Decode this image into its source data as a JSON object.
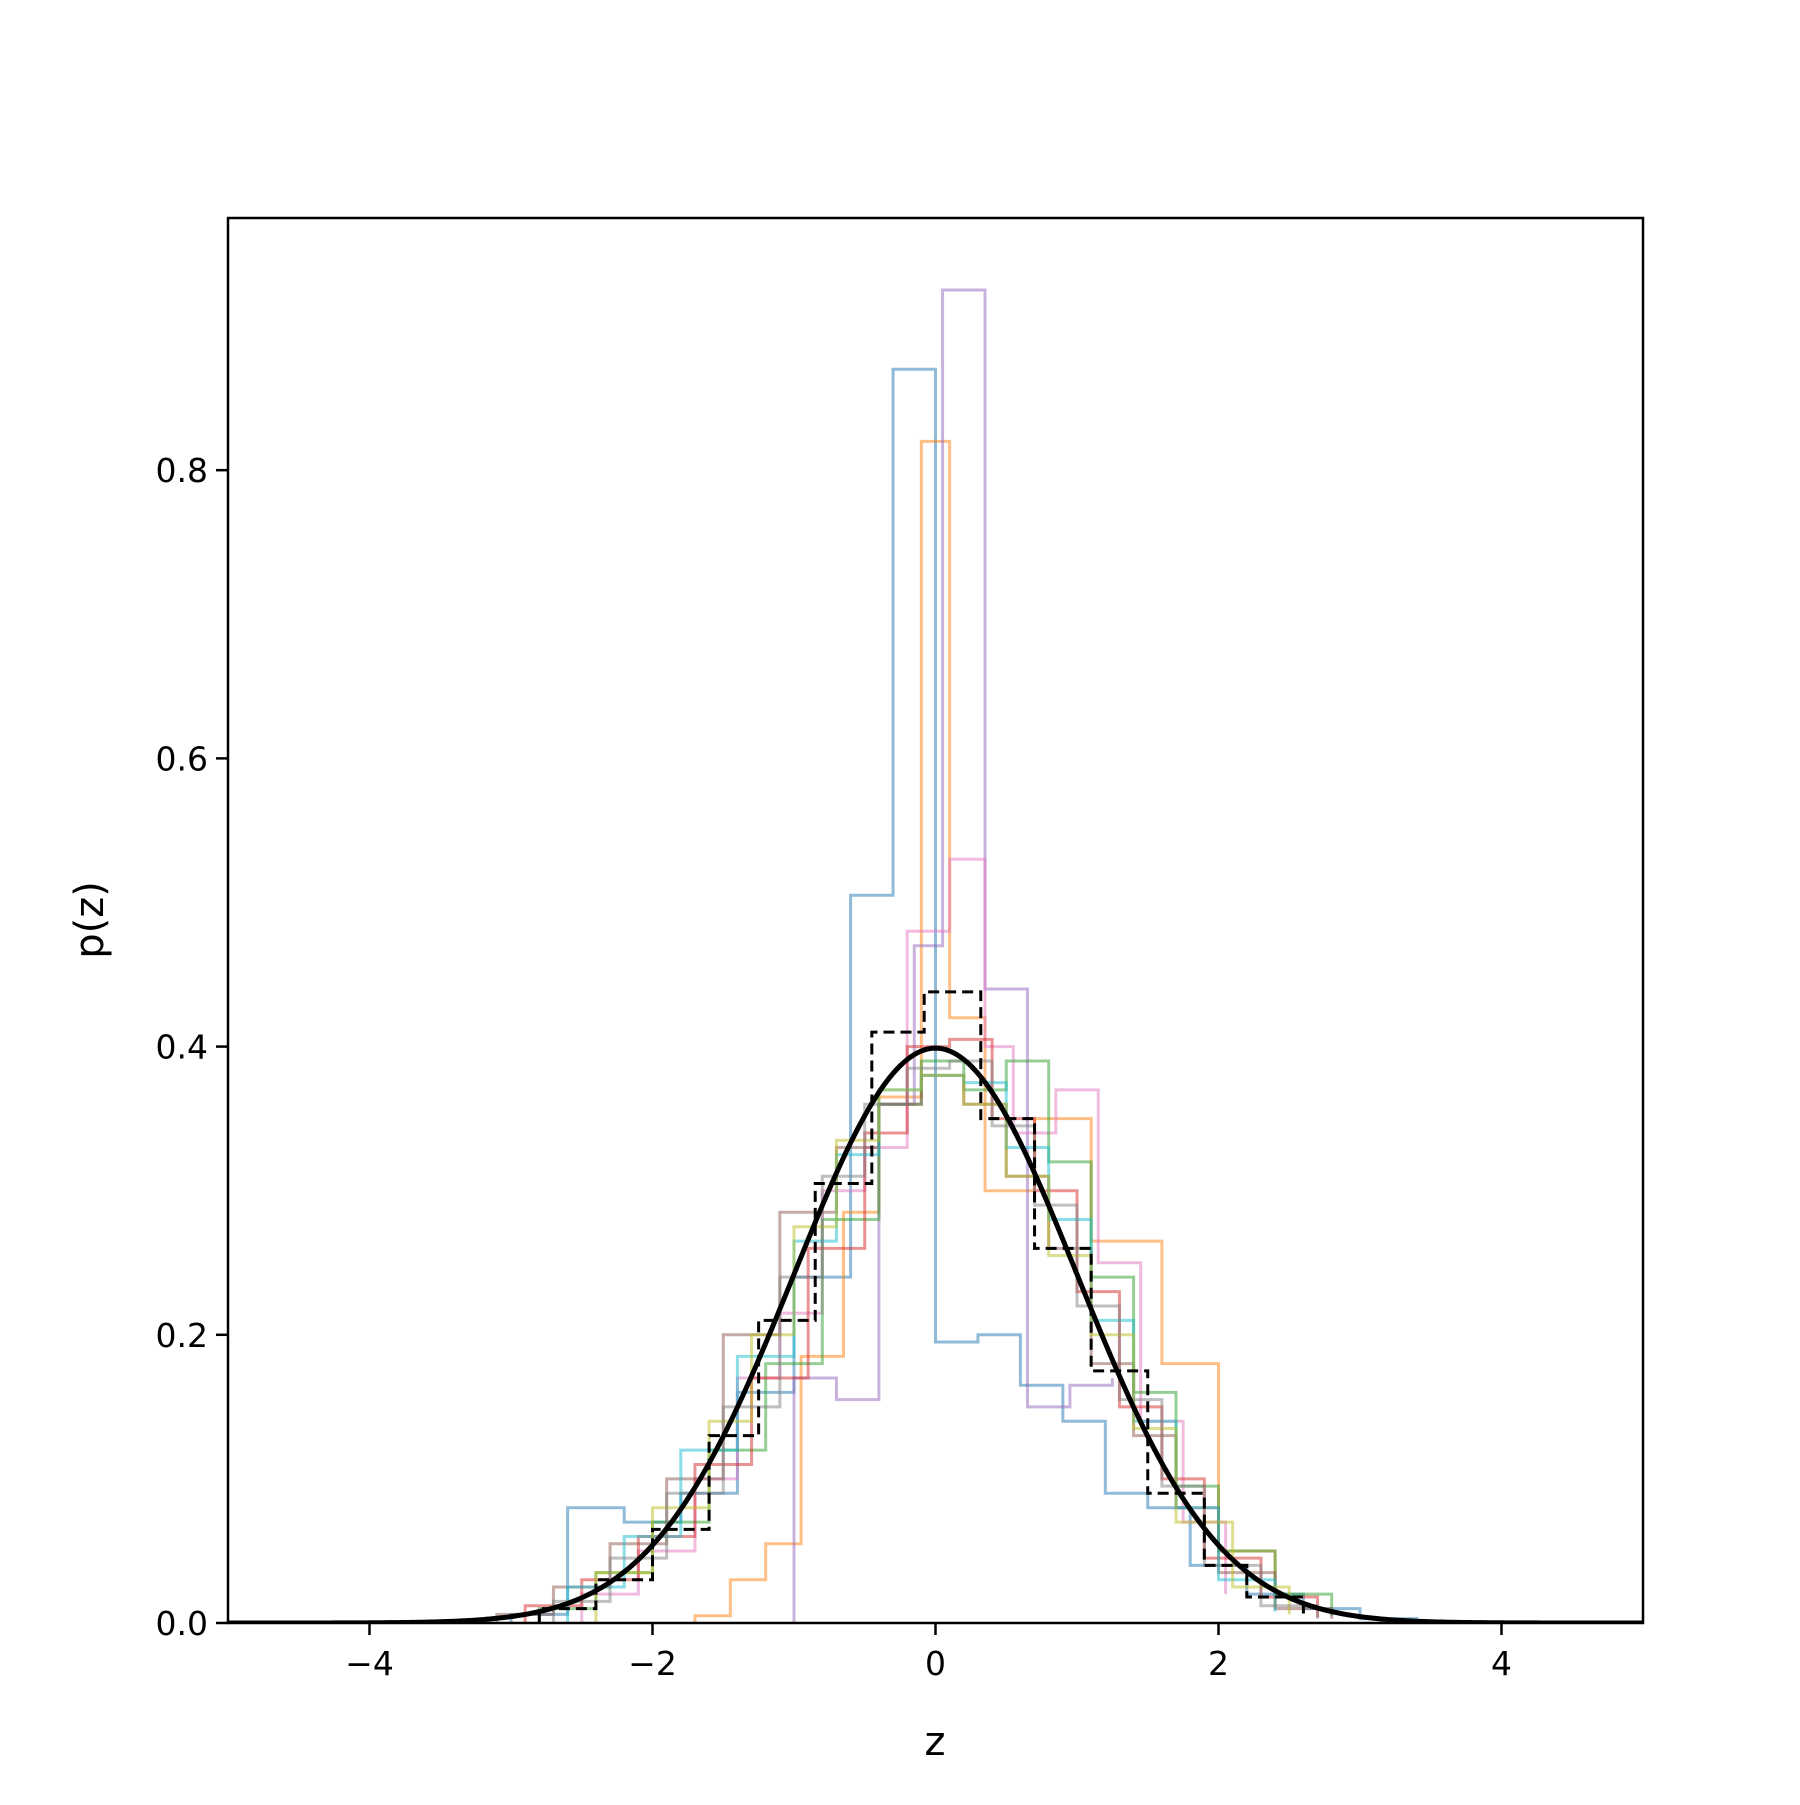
{
  "chart_data": {
    "type": "histogram",
    "title": "",
    "xlabel": "z",
    "ylabel": "p(z)",
    "xlim": [
      -5,
      5
    ],
    "ylim": [
      0,
      0.975
    ],
    "xticks": [
      -4,
      -2,
      0,
      2,
      4
    ],
    "xtick_labels": [
      "−4",
      "−2",
      "0",
      "2",
      "4"
    ],
    "yticks": [
      0,
      0.2,
      0.4,
      0.6,
      0.8
    ],
    "ytick_labels": [
      "0.0",
      "0.2",
      "0.4",
      "0.6",
      "0.8"
    ],
    "grid": false,
    "legend": "none",
    "reference_curve": {
      "style": "solid",
      "color": "#000000",
      "mean": 0,
      "sd": 1
    },
    "series": [
      {
        "color": "#1f77b4",
        "style": "step",
        "alpha": 0.5,
        "edges": [
          -3.0,
          -2.6,
          -2.2,
          -1.8,
          -1.4,
          -1.0,
          -0.6,
          -0.3,
          0.0,
          0.3,
          0.6,
          0.9,
          1.2,
          1.5,
          1.8,
          2.2,
          2.6,
          3.0,
          3.4
        ],
        "values": [
          0.006,
          0.08,
          0.07,
          0.09,
          0.16,
          0.24,
          0.505,
          0.87,
          0.195,
          0.2,
          0.165,
          0.14,
          0.09,
          0.08,
          0.04,
          0.02,
          0.01,
          0.003
        ]
      },
      {
        "color": "#ff7f0e",
        "style": "step",
        "alpha": 0.5,
        "edges": [
          -1.7,
          -1.45,
          -1.2,
          -0.95,
          -0.65,
          -0.4,
          -0.1,
          0.1,
          0.35,
          0.7,
          1.1,
          1.6,
          2.0,
          2.4
        ],
        "values": [
          0.005,
          0.03,
          0.055,
          0.185,
          0.285,
          0.365,
          0.82,
          0.42,
          0.3,
          0.35,
          0.265,
          0.18,
          0.05,
          0.01
        ]
      },
      {
        "color": "#9467bd",
        "style": "step",
        "alpha": 0.5,
        "edges": [
          -1.0,
          -0.7,
          -0.4,
          -0.15,
          0.05,
          0.35,
          0.65,
          0.95,
          1.25
        ],
        "values": [
          0.17,
          0.155,
          0.36,
          0.47,
          0.925,
          0.44,
          0.15,
          0.165,
          0.17
        ]
      },
      {
        "color": "#e377c2",
        "style": "step",
        "alpha": 0.5,
        "edges": [
          -2.5,
          -2.1,
          -1.7,
          -1.4,
          -1.1,
          -0.8,
          -0.5,
          -0.2,
          0.1,
          0.35,
          0.55,
          0.85,
          1.15,
          1.45,
          1.75,
          2.05
        ],
        "values": [
          0.02,
          0.05,
          0.1,
          0.17,
          0.215,
          0.3,
          0.33,
          0.48,
          0.53,
          0.4,
          0.34,
          0.37,
          0.25,
          0.14,
          0.07,
          0.02
        ]
      },
      {
        "color": "#2ca02c",
        "style": "step",
        "alpha": 0.5,
        "edges": [
          -2.8,
          -2.4,
          -2.0,
          -1.6,
          -1.2,
          -0.8,
          -0.4,
          -0.1,
          0.2,
          0.5,
          0.8,
          1.1,
          1.4,
          1.7,
          2.0,
          2.4,
          2.8
        ],
        "values": [
          0.01,
          0.035,
          0.07,
          0.12,
          0.18,
          0.28,
          0.36,
          0.39,
          0.37,
          0.39,
          0.32,
          0.24,
          0.16,
          0.095,
          0.05,
          0.02,
          0.005
        ]
      },
      {
        "color": "#d62728",
        "style": "step",
        "alpha": 0.5,
        "edges": [
          -2.9,
          -2.5,
          -2.1,
          -1.7,
          -1.3,
          -0.9,
          -0.5,
          -0.2,
          0.1,
          0.4,
          0.7,
          1.0,
          1.3,
          1.6,
          1.9,
          2.3,
          2.7
        ],
        "values": [
          0.012,
          0.03,
          0.06,
          0.11,
          0.17,
          0.26,
          0.34,
          0.4,
          0.405,
          0.35,
          0.3,
          0.23,
          0.15,
          0.1,
          0.045,
          0.018,
          0.004
        ]
      },
      {
        "color": "#8c564b",
        "style": "step",
        "alpha": 0.5,
        "edges": [
          -3.1,
          -2.7,
          -2.3,
          -1.9,
          -1.5,
          -1.1,
          -0.7,
          -0.4,
          -0.1,
          0.2,
          0.5,
          0.8,
          1.1,
          1.4,
          1.7,
          2.0,
          2.4,
          2.8
        ],
        "values": [
          0.006,
          0.025,
          0.055,
          0.1,
          0.2,
          0.285,
          0.33,
          0.36,
          0.38,
          0.36,
          0.31,
          0.26,
          0.18,
          0.13,
          0.08,
          0.035,
          0.01,
          0.003
        ]
      },
      {
        "color": "#17becf",
        "style": "step",
        "alpha": 0.5,
        "edges": [
          -2.6,
          -2.2,
          -1.8,
          -1.4,
          -1.0,
          -0.7,
          -0.4,
          -0.1,
          0.2,
          0.5,
          0.8,
          1.1,
          1.4,
          1.7,
          2.0,
          2.4
        ],
        "values": [
          0.025,
          0.06,
          0.12,
          0.185,
          0.265,
          0.325,
          0.37,
          0.38,
          0.375,
          0.33,
          0.28,
          0.21,
          0.14,
          0.08,
          0.03,
          0.008
        ]
      },
      {
        "color": "#bcbd22",
        "style": "step",
        "alpha": 0.5,
        "edges": [
          -2.4,
          -2.0,
          -1.6,
          -1.3,
          -1.0,
          -0.7,
          -0.4,
          -0.1,
          0.2,
          0.5,
          0.8,
          1.1,
          1.4,
          1.7,
          2.1,
          2.5
        ],
        "values": [
          0.035,
          0.08,
          0.14,
          0.2,
          0.275,
          0.335,
          0.37,
          0.38,
          0.36,
          0.31,
          0.255,
          0.2,
          0.135,
          0.07,
          0.025,
          0.006
        ]
      },
      {
        "color": "#7f7f7f",
        "style": "step",
        "alpha": 0.5,
        "edges": [
          -2.7,
          -2.3,
          -1.9,
          -1.5,
          -1.1,
          -0.8,
          -0.5,
          -0.2,
          0.1,
          0.4,
          0.7,
          1.0,
          1.3,
          1.6,
          1.9,
          2.3,
          2.7
        ],
        "values": [
          0.015,
          0.045,
          0.09,
          0.15,
          0.24,
          0.31,
          0.36,
          0.385,
          0.39,
          0.345,
          0.29,
          0.22,
          0.155,
          0.095,
          0.04,
          0.012,
          0.003
        ]
      },
      {
        "color": "#000000",
        "style": "step-dashed",
        "alpha": 1,
        "edges": [
          -2.8,
          -2.4,
          -2.0,
          -1.6,
          -1.25,
          -0.85,
          -0.45,
          -0.08,
          0.32,
          0.7,
          1.1,
          1.5,
          1.9,
          2.2,
          2.6
        ],
        "values": [
          0.01,
          0.03,
          0.065,
          0.13,
          0.21,
          0.305,
          0.41,
          0.438,
          0.35,
          0.26,
          0.175,
          0.09,
          0.04,
          0.018,
          0.005
        ]
      }
    ]
  }
}
